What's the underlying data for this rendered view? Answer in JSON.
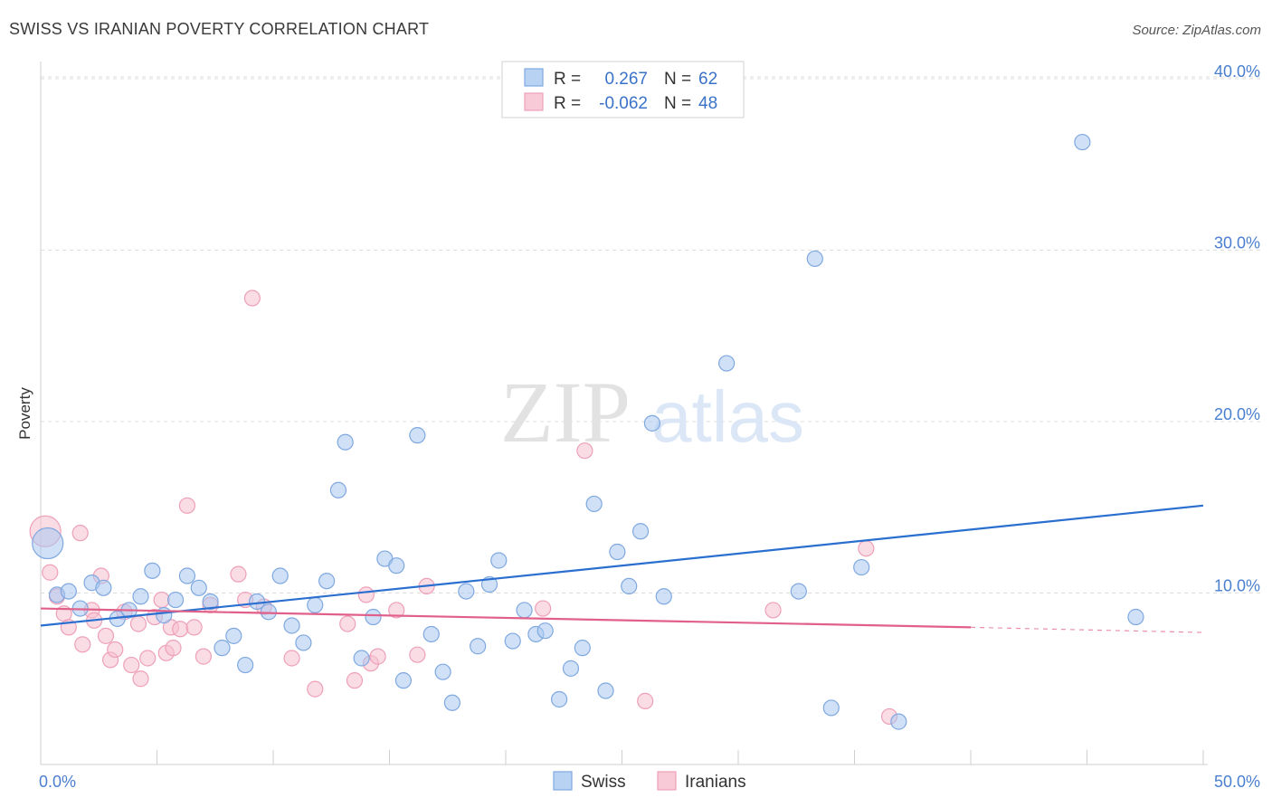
{
  "title": "SWISS VS IRANIAN POVERTY CORRELATION CHART",
  "source": "Source: ZipAtlas.com",
  "watermark": {
    "part1": "ZIP",
    "part2": "atlas"
  },
  "colors": {
    "swiss_fill": "#a9c8f0",
    "swiss_stroke": "#7fa8e0",
    "swiss_line": "#2a6fd0",
    "iran_fill": "#f6c0d0",
    "iran_stroke": "#eea0b8",
    "iran_line": "#e0608a",
    "tick_text": "#4a7fd0",
    "grid": "#dcdcdc"
  },
  "chart_data": {
    "type": "scatter",
    "title": "SWISS VS IRANIAN POVERTY CORRELATION CHART",
    "xlabel": "",
    "ylabel": "Poverty",
    "xlim": [
      0,
      50
    ],
    "ylim": [
      0,
      41
    ],
    "x_tick_labels": [
      "0.0%",
      "50.0%"
    ],
    "y_ticks": [
      10,
      20,
      30,
      40
    ],
    "y_tick_labels": [
      "10.0%",
      "20.0%",
      "30.0%",
      "40.0%"
    ],
    "grid": "horizontal dashed",
    "legend": {
      "placement": "top-center",
      "rows": [
        {
          "r_label": "R =",
          "r_value": "0.267",
          "n_label": "N =",
          "n_value": "62"
        },
        {
          "r_label": "R =",
          "r_value": "-0.062",
          "n_label": "N =",
          "n_value": "48"
        }
      ]
    },
    "bottom_legend": [
      "Swiss",
      "Iranians"
    ],
    "series": [
      {
        "name": "Swiss",
        "trend": {
          "x": [
            0,
            50
          ],
          "y": [
            8.1,
            15.1
          ]
        },
        "points": [
          [
            0.3,
            12.9,
            "large"
          ],
          [
            0.7,
            9.9
          ],
          [
            1.2,
            10.1
          ],
          [
            1.7,
            9.1
          ],
          [
            2.2,
            10.6
          ],
          [
            2.7,
            10.3
          ],
          [
            3.3,
            8.5
          ],
          [
            3.8,
            9.0
          ],
          [
            4.3,
            9.8
          ],
          [
            4.8,
            11.3
          ],
          [
            5.3,
            8.7
          ],
          [
            5.8,
            9.6
          ],
          [
            6.3,
            11.0
          ],
          [
            6.8,
            10.3
          ],
          [
            7.3,
            9.5
          ],
          [
            7.8,
            6.8
          ],
          [
            8.3,
            7.5
          ],
          [
            8.8,
            5.8
          ],
          [
            9.3,
            9.5
          ],
          [
            9.8,
            8.9
          ],
          [
            10.3,
            11.0
          ],
          [
            10.8,
            8.1
          ],
          [
            11.3,
            7.1
          ],
          [
            11.8,
            9.3
          ],
          [
            12.3,
            10.7
          ],
          [
            12.8,
            16.0
          ],
          [
            13.1,
            18.8
          ],
          [
            13.8,
            6.2
          ],
          [
            14.3,
            8.6
          ],
          [
            14.8,
            12.0
          ],
          [
            15.3,
            11.6
          ],
          [
            15.6,
            4.9
          ],
          [
            16.2,
            19.2
          ],
          [
            16.8,
            7.6
          ],
          [
            17.3,
            5.4
          ],
          [
            17.7,
            3.6
          ],
          [
            18.3,
            10.1
          ],
          [
            18.8,
            6.9
          ],
          [
            19.3,
            10.5
          ],
          [
            19.7,
            11.9
          ],
          [
            20.3,
            7.2
          ],
          [
            20.8,
            9.0
          ],
          [
            21.3,
            7.6
          ],
          [
            21.7,
            7.8
          ],
          [
            22.3,
            3.8
          ],
          [
            22.8,
            5.6
          ],
          [
            23.3,
            6.8
          ],
          [
            23.8,
            15.2
          ],
          [
            24.3,
            4.3
          ],
          [
            24.8,
            12.4
          ],
          [
            25.3,
            10.4
          ],
          [
            25.8,
            13.6
          ],
          [
            26.3,
            19.9
          ],
          [
            26.8,
            9.8
          ],
          [
            29.5,
            23.4
          ],
          [
            32.6,
            10.1
          ],
          [
            33.3,
            29.5
          ],
          [
            34.0,
            3.3
          ],
          [
            35.3,
            11.5
          ],
          [
            36.9,
            2.5
          ],
          [
            44.8,
            36.3
          ],
          [
            47.1,
            8.6
          ]
        ]
      },
      {
        "name": "Iranians",
        "trend": {
          "x": [
            0,
            40
          ],
          "y": [
            9.1,
            8.0
          ]
        },
        "trend_dashed": {
          "x": [
            40,
            50
          ],
          "y": [
            8.0,
            7.7
          ]
        },
        "points": [
          [
            0.2,
            13.6,
            "large"
          ],
          [
            0.4,
            11.2
          ],
          [
            0.7,
            9.8
          ],
          [
            1.0,
            8.8
          ],
          [
            1.2,
            8.0
          ],
          [
            1.7,
            13.5
          ],
          [
            1.8,
            7.0
          ],
          [
            2.2,
            9.0
          ],
          [
            2.3,
            8.4
          ],
          [
            2.6,
            11.0
          ],
          [
            2.8,
            7.5
          ],
          [
            3.0,
            6.1
          ],
          [
            3.2,
            6.7
          ],
          [
            3.6,
            8.9
          ],
          [
            3.9,
            5.8
          ],
          [
            4.2,
            8.2
          ],
          [
            4.3,
            5.0
          ],
          [
            4.6,
            6.2
          ],
          [
            4.9,
            8.6
          ],
          [
            5.2,
            9.6
          ],
          [
            5.4,
            6.5
          ],
          [
            5.6,
            8.0
          ],
          [
            5.7,
            6.8
          ],
          [
            6.0,
            7.9
          ],
          [
            6.3,
            15.1
          ],
          [
            6.6,
            8.0
          ],
          [
            7.0,
            6.3
          ],
          [
            7.3,
            9.3
          ],
          [
            8.5,
            11.1
          ],
          [
            8.8,
            9.6
          ],
          [
            9.1,
            27.2
          ],
          [
            9.6,
            9.2
          ],
          [
            10.8,
            6.2
          ],
          [
            11.8,
            4.4
          ],
          [
            13.2,
            8.2
          ],
          [
            13.5,
            4.9
          ],
          [
            14.0,
            9.9
          ],
          [
            14.2,
            5.9
          ],
          [
            14.5,
            6.3
          ],
          [
            15.3,
            9.0
          ],
          [
            16.2,
            6.4
          ],
          [
            16.6,
            10.4
          ],
          [
            21.6,
            9.1
          ],
          [
            23.4,
            18.3
          ],
          [
            26.0,
            3.7
          ],
          [
            31.5,
            9.0
          ],
          [
            35.5,
            12.6
          ],
          [
            36.5,
            2.8
          ]
        ]
      }
    ]
  }
}
